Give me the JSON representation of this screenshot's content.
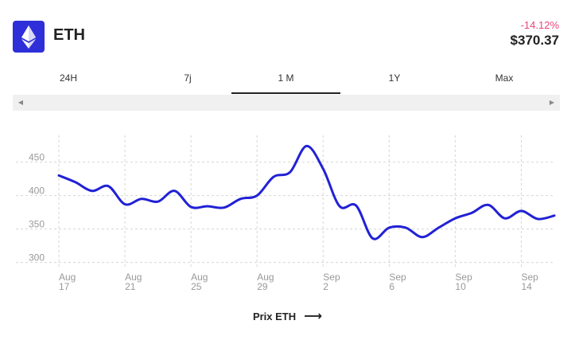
{
  "header": {
    "coin_symbol": "ETH",
    "change": "-14.12%",
    "price": "$370.37",
    "icon": "ethereum-icon"
  },
  "tabs": [
    {
      "label": "24H",
      "active": false
    },
    {
      "label": "7j",
      "active": false
    },
    {
      "label": "1 M",
      "active": true
    },
    {
      "label": "1Y",
      "active": false
    },
    {
      "label": "Max",
      "active": false
    }
  ],
  "scrollbar": {
    "left_icon": "arrow-left-icon",
    "right_icon": "arrow-right-icon"
  },
  "footer": {
    "label": "Prix ETH",
    "icon": "arrow-right-icon"
  },
  "colors": {
    "line": "#2121d6",
    "change_negative": "#e8457a",
    "logo_bg": "#2f2fd9"
  },
  "chart_data": {
    "type": "line",
    "x_tick_labels": [
      [
        "Aug",
        "17"
      ],
      [
        "Aug",
        "21"
      ],
      [
        "Aug",
        "25"
      ],
      [
        "Aug",
        "29"
      ],
      [
        "Sep",
        "2"
      ],
      [
        "Sep",
        "6"
      ],
      [
        "Sep",
        "10"
      ],
      [
        "Sep",
        "14"
      ]
    ],
    "y_ticks": [
      300,
      350,
      400,
      450
    ],
    "ylim": [
      290,
      490
    ],
    "grid": true,
    "series": [
      {
        "values": [
          [
            "2020-08-17",
            430
          ],
          [
            "2020-08-18",
            420
          ],
          [
            "2020-08-19",
            407
          ],
          [
            "2020-08-20",
            414
          ],
          [
            "2020-08-21",
            387
          ],
          [
            "2020-08-22",
            395
          ],
          [
            "2020-08-23",
            391
          ],
          [
            "2020-08-24",
            407
          ],
          [
            "2020-08-25",
            383
          ],
          [
            "2020-08-26",
            384
          ],
          [
            "2020-08-27",
            382
          ],
          [
            "2020-08-28",
            395
          ],
          [
            "2020-08-29",
            400
          ],
          [
            "2020-08-30",
            428
          ],
          [
            "2020-08-31",
            435
          ],
          [
            "2020-09-01",
            474
          ],
          [
            "2020-09-02",
            440
          ],
          [
            "2020-09-03",
            384
          ],
          [
            "2020-09-04",
            385
          ],
          [
            "2020-09-05",
            336
          ],
          [
            "2020-09-06",
            352
          ],
          [
            "2020-09-07",
            352
          ],
          [
            "2020-09-08",
            338
          ],
          [
            "2020-09-09",
            352
          ],
          [
            "2020-09-10",
            366
          ],
          [
            "2020-09-11",
            374
          ],
          [
            "2020-09-12",
            386
          ],
          [
            "2020-09-13",
            366
          ],
          [
            "2020-09-14",
            377
          ],
          [
            "2020-09-15",
            365
          ],
          [
            "2020-09-16",
            370
          ]
        ]
      }
    ]
  }
}
